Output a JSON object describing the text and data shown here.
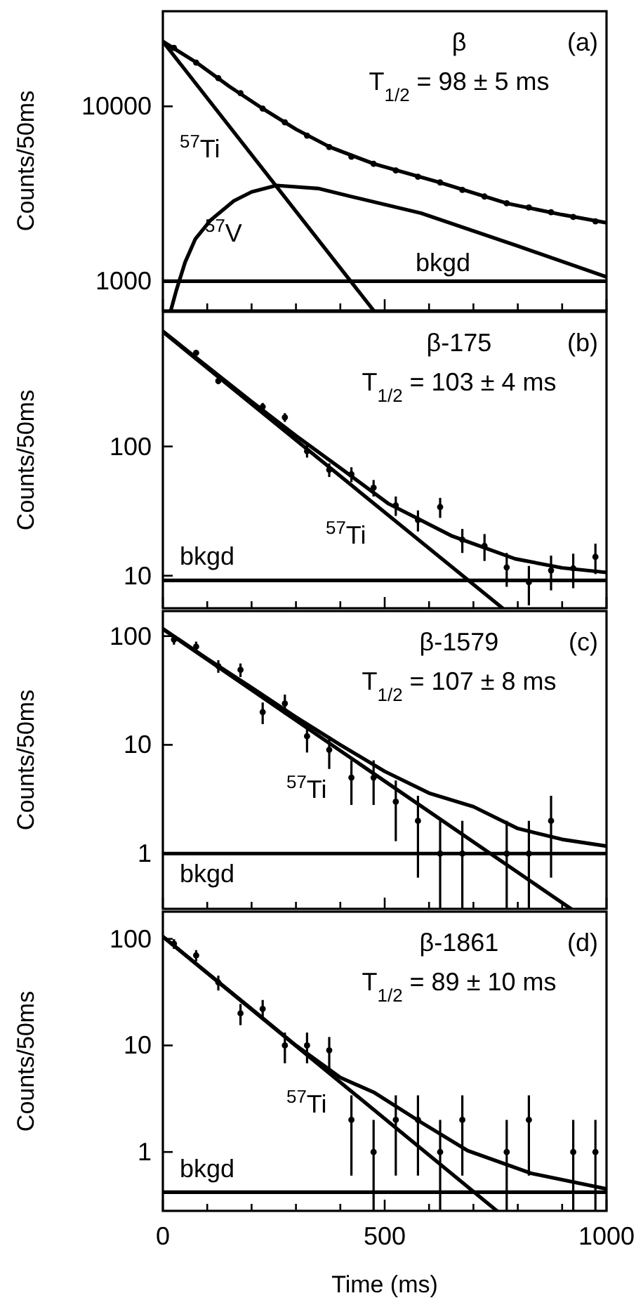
{
  "chart_data": [
    {
      "type": "line",
      "title": "β",
      "subtitle": "T$_{1/2}$ = 98 ± 5 ms",
      "annotations": [
        "(a)"
      ],
      "ylabel": "Counts/50ms",
      "log": true,
      "tick_labels": "y",
      "xlim": [
        0,
        1000
      ],
      "xticks": [
        0,
        {
          "value": 100,
          "label": null
        },
        {
          "value": 200,
          "label": null
        },
        {
          "value": 300,
          "label": null
        },
        {
          "value": 400,
          "label": null
        },
        500,
        {
          "value": 600,
          "label": null
        },
        {
          "value": 700,
          "label": null
        },
        {
          "value": 800,
          "label": null
        },
        {
          "value": 900,
          "label": null
        },
        1000
      ],
      "ylim": [
        680,
        35000
      ],
      "yticks": [
        1000,
        10000
      ],
      "series": [
        {
          "type": "line",
          "color": "#000000",
          "x": [
            0,
            76,
            150,
            228,
            300,
            377,
            477,
            624,
            777,
            900,
            1000
          ],
          "values": [
            23500,
            17800,
            13000,
            9600,
            7400,
            5840,
            4680,
            3670,
            2780,
            2400,
            2160
          ]
        },
        {
          "type": "line",
          "name": "$^{57}$Ti",
          "color": "#000000",
          "x": [
            0,
            475
          ],
          "values": [
            23500,
            680
          ]
        },
        {
          "type": "line",
          "name": "$^{57}$V",
          "color": "#000000",
          "x": [
            18,
            30,
            50,
            73,
            108,
            160,
            200,
            256,
            350,
            424,
            582,
            800,
            1000
          ],
          "values": [
            680,
            880,
            1280,
            1740,
            2240,
            2880,
            3240,
            3530,
            3390,
            3050,
            2450,
            1590,
            1057
          ]
        },
        {
          "type": "line",
          "name": "bkgd",
          "color": "#000000",
          "x": [
            0,
            1000
          ],
          "values": [
            1000,
            1000
          ]
        },
        {
          "type": "scatter",
          "marker": "circle",
          "color": "#000000",
          "x": [
            25,
            75,
            125,
            175,
            225,
            275,
            325,
            375,
            425,
            475,
            525,
            575,
            625,
            675,
            725,
            775,
            825,
            875,
            925,
            975
          ],
          "values": [
            21600,
            17800,
            14500,
            11900,
            9700,
            8100,
            6800,
            5850,
            5150,
            4690,
            4300,
            3960,
            3670,
            3330,
            3050,
            2790,
            2640,
            2480,
            2330,
            2200
          ]
        }
      ]
    },
    {
      "type": "line",
      "title": "β-175",
      "subtitle": "T$_{1/2}$ = 103 ± 4 ms",
      "annotations": [
        "(b)"
      ],
      "ylabel": "Counts/50ms",
      "log": true,
      "tick_labels": "y",
      "xlim": [
        0,
        1000
      ],
      "xticks": [
        0,
        {
          "value": 100,
          "label": null
        },
        {
          "value": 200,
          "label": null
        },
        {
          "value": 300,
          "label": null
        },
        {
          "value": 400,
          "label": null
        },
        500,
        {
          "value": 600,
          "label": null
        },
        {
          "value": 700,
          "label": null
        },
        {
          "value": 800,
          "label": null
        },
        {
          "value": 900,
          "label": null
        },
        1000
      ],
      "ylim": [
        5.6,
        1100
      ],
      "yticks": [
        10,
        100
      ],
      "series": [
        {
          "type": "line",
          "color": "#000000",
          "x": [
            0,
            100,
            200,
            300,
            400,
            509,
            650,
            794,
            900,
            1000
          ],
          "values": [
            780,
            415,
            222,
            121,
            68,
            36,
            20.4,
            13.5,
            11.5,
            10.6
          ]
        },
        {
          "type": "line",
          "name": "$^{57}$Ti",
          "color": "#000000",
          "x": [
            0,
            766
          ],
          "values": [
            770,
            5.6
          ]
        },
        {
          "type": "line",
          "name": "bkgd",
          "color": "#000000",
          "x": [
            0,
            1000
          ],
          "values": [
            9.2,
            9.2
          ]
        },
        {
          "type": "scatter",
          "marker": "circle",
          "color": "#000000",
          "x": [
            75,
            125,
            225,
            275,
            325,
            375,
            425,
            475,
            525,
            575,
            625,
            675,
            725,
            775,
            825,
            875,
            925,
            975
          ],
          "values": [
            530,
            321,
            203,
            168,
            92,
            66,
            61,
            48,
            35,
            27,
            34,
            19,
            17,
            11.6,
            8.9,
            11,
            11.4,
            14
          ],
          "errors": [
            23,
            18,
            14,
            13,
            10,
            8,
            8,
            7,
            6,
            5,
            6,
            4,
            4,
            3.4,
            3,
            3.3,
            3.4,
            3.7
          ]
        }
      ]
    },
    {
      "type": "line",
      "title": "β-1579",
      "subtitle": "T$_{1/2}$ = 107 ± 8 ms",
      "annotations": [
        "(c)"
      ],
      "ylabel": "Counts/50ms",
      "log": true,
      "tick_labels": "y",
      "xlim": [
        0,
        1000
      ],
      "xticks": [
        0,
        {
          "value": 100,
          "label": null
        },
        {
          "value": 200,
          "label": null
        },
        {
          "value": 300,
          "label": null
        },
        {
          "value": 400,
          "label": null
        },
        500,
        {
          "value": 600,
          "label": null
        },
        {
          "value": 700,
          "label": null
        },
        {
          "value": 800,
          "label": null
        },
        {
          "value": 900,
          "label": null
        },
        1000
      ],
      "ylim": [
        0.31,
        170
      ],
      "yticks": [
        1,
        10,
        100
      ],
      "series": [
        {
          "type": "line",
          "color": "#000000",
          "x": [
            0,
            100,
            200,
            300,
            400,
            500,
            600,
            700,
            800,
            900,
            1000
          ],
          "values": [
            117,
            62,
            33.6,
            18,
            10,
            5.7,
            3.6,
            2.7,
            1.7,
            1.35,
            1.17
          ]
        },
        {
          "type": "line",
          "name": "$^{57}$Ti",
          "color": "#000000",
          "x": [
            0,
            920
          ],
          "values": [
            116,
            0.31
          ]
        },
        {
          "type": "line",
          "name": "bkgd",
          "color": "#000000",
          "x": [
            0,
            1000
          ],
          "values": [
            1,
            1
          ]
        },
        {
          "type": "scatter",
          "marker": "circle",
          "color": "#000000",
          "x": [
            25,
            75,
            125,
            175,
            225,
            275,
            325,
            375,
            425,
            475,
            525,
            575,
            625,
            675,
            775,
            825,
            875
          ],
          "values": [
            93,
            80,
            53,
            49,
            20,
            24,
            12,
            9,
            5,
            5,
            3,
            2,
            1,
            1,
            1,
            1,
            2
          ],
          "errors": [
            9.6,
            9,
            7,
            7,
            4.5,
            5,
            3.5,
            3,
            2.2,
            2.2,
            1.7,
            1.4,
            [
              0.31,
              2
            ],
            [
              0.31,
              2
            ],
            [
              0.31,
              2
            ],
            [
              0.31,
              2
            ],
            1.4
          ]
        }
      ]
    },
    {
      "type": "line",
      "title": "β-1861",
      "subtitle": "T$_{1/2}$ = 89 ± 10 ms",
      "annotations": [
        "(d)"
      ],
      "ylabel": "Counts/50ms",
      "xlabel": "Time (ms)",
      "log": true,
      "xlim": [
        0,
        1000
      ],
      "xticks": [
        0,
        {
          "value": 100,
          "label": null
        },
        {
          "value": 200,
          "label": null
        },
        {
          "value": 300,
          "label": null
        },
        {
          "value": 400,
          "label": null
        },
        500,
        {
          "value": 600,
          "label": null
        },
        {
          "value": 700,
          "label": null
        },
        {
          "value": 800,
          "label": null
        },
        {
          "value": 900,
          "label": null
        },
        1000
      ],
      "ylim": [
        0.28,
        180
      ],
      "yticks": [
        1,
        10,
        100
      ],
      "series": [
        {
          "type": "line",
          "color": "#000000",
          "x": [
            0,
            100,
            200,
            300,
            400,
            477,
            582,
            687,
            830,
            1000
          ],
          "values": [
            105,
            48,
            22,
            10,
            5,
            3.6,
            1.9,
            1.03,
            0.63,
            0.45
          ]
        },
        {
          "type": "line",
          "name": "$^{57}$Ti",
          "color": "#000000",
          "x": [
            0,
            753
          ],
          "values": [
            105,
            0.28
          ]
        },
        {
          "type": "line",
          "name": "bkgd",
          "color": "#000000",
          "x": [
            0,
            1000
          ],
          "values": [
            0.42,
            0.42
          ]
        },
        {
          "type": "scatter",
          "marker": "circle",
          "color": "#000000",
          "x": [
            25,
            75,
            125,
            175,
            225,
            275,
            325,
            375,
            425,
            475,
            525,
            575,
            625,
            675,
            775,
            825,
            925,
            975
          ],
          "values": [
            90,
            70,
            39,
            20,
            22,
            10,
            10,
            9,
            2,
            1,
            2,
            2,
            1,
            2,
            1,
            2,
            1,
            1
          ],
          "errors": [
            9.5,
            8.4,
            6.2,
            4.5,
            4.7,
            3.2,
            3.2,
            3,
            1.4,
            [
              0.28,
              2
            ],
            1.4,
            1.4,
            [
              0.28,
              2
            ],
            1.4,
            [
              0.28,
              2
            ],
            1.4,
            [
              0.28,
              2
            ],
            [
              0.28,
              2
            ]
          ]
        }
      ]
    }
  ]
}
